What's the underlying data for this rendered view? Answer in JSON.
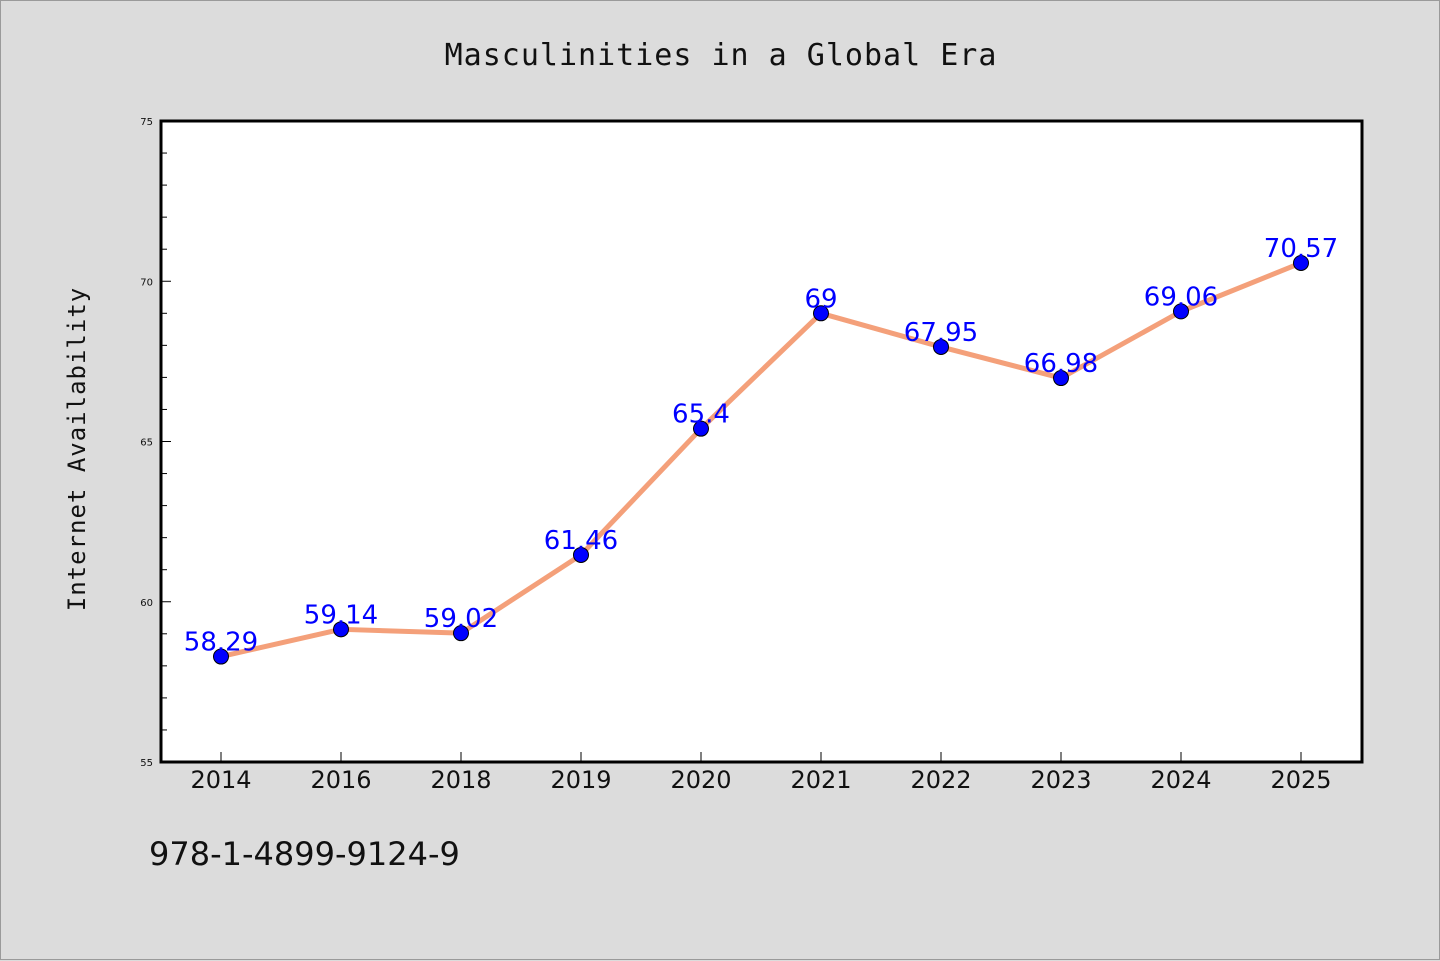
{
  "chart_data": {
    "type": "line",
    "title": "Masculinities in a Global Era",
    "ylabel": "Internet Availability",
    "xlabel": "",
    "categories": [
      "2014",
      "2016",
      "2018",
      "2019",
      "2020",
      "2021",
      "2022",
      "2023",
      "2024",
      "2025"
    ],
    "values": [
      58.29,
      59.14,
      59.02,
      61.46,
      65.4,
      69,
      67.95,
      66.98,
      69.06,
      70.57
    ],
    "value_labels": [
      "58.29",
      "59.14",
      "59.02",
      "61.46",
      "65.4",
      "69",
      "67.95",
      "66.98",
      "69.06",
      "70.57"
    ],
    "ylim": [
      55,
      75
    ],
    "yticks": [
      "55",
      "60",
      "65",
      "70",
      "75"
    ],
    "grid": false,
    "line_color": "#f4a07a",
    "marker_color": "#0000ff",
    "label_color": "#0000ff"
  },
  "footer": {
    "isbn": "978-1-4899-9124-9"
  }
}
